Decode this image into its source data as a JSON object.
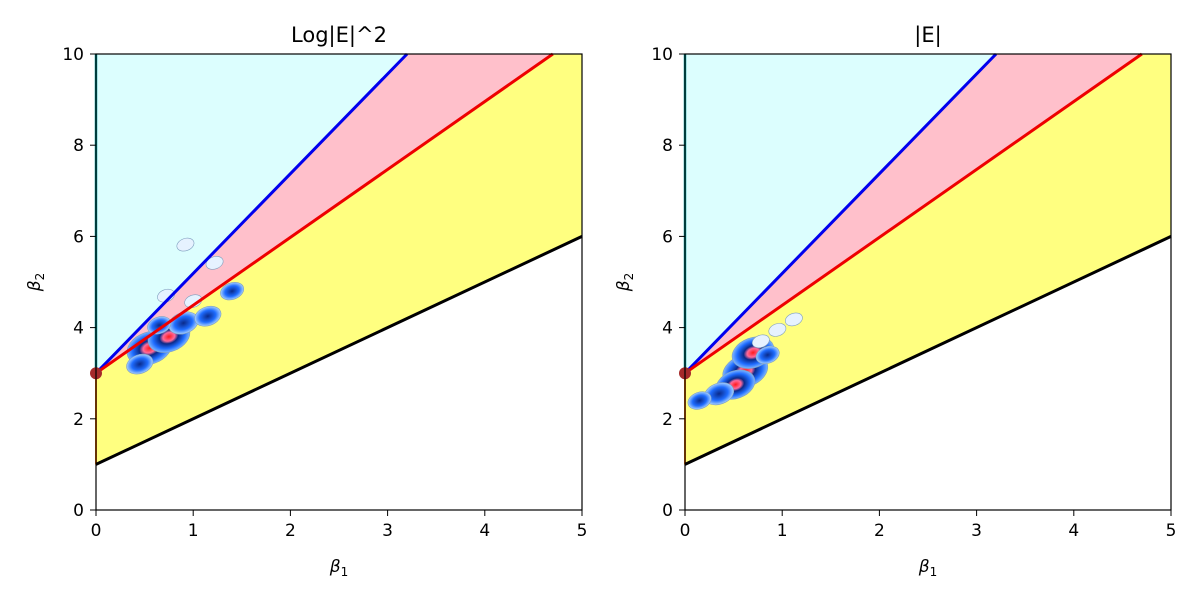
{
  "chart_data": [
    {
      "type": "area",
      "title": "Log|E|^2",
      "xlabel": "β1",
      "ylabel": "β2",
      "xlim": [
        0,
        5
      ],
      "ylim": [
        0,
        10
      ],
      "xticks": [
        "0",
        "1",
        "2",
        "3",
        "4",
        "5"
      ],
      "yticks": [
        "0",
        "2",
        "4",
        "6",
        "8",
        "10"
      ],
      "grid": false,
      "colors": {
        "region_top": "#dcfefe",
        "region_upper_mid": "#ffc0cb",
        "region_lower_mid": "#ffff80",
        "line_blue": "#0000ee",
        "line_red": "#ee0000",
        "line_black": "#000000",
        "marker": "#a52a2a"
      },
      "series": [
        {
          "x": [
            0,
            3.2
          ],
          "y": [
            3,
            10
          ],
          "color": "#0000ee"
        },
        {
          "x": [
            0,
            4.7
          ],
          "y": [
            3,
            10
          ],
          "color": "#ee0000"
        },
        {
          "x": [
            0,
            5
          ],
          "y": [
            1,
            6
          ],
          "color": "#000000"
        }
      ],
      "marker_point": {
        "x": 0,
        "y": 3
      },
      "heatmap_blobs": [
        {
          "x": 0.55,
          "y": 3.55,
          "intensity": 1.0
        },
        {
          "x": 0.75,
          "y": 3.8,
          "intensity": 0.9
        },
        {
          "x": 0.45,
          "y": 3.2,
          "intensity": 0.4
        },
        {
          "x": 0.9,
          "y": 4.1,
          "intensity": 0.5
        },
        {
          "x": 1.15,
          "y": 4.25,
          "intensity": 0.4
        },
        {
          "x": 1.4,
          "y": 4.8,
          "intensity": 0.3
        },
        {
          "x": 0.65,
          "y": 4.05,
          "intensity": 0.3
        },
        {
          "x": 0.92,
          "y": 5.82,
          "intensity": 0.1
        },
        {
          "x": 1.22,
          "y": 5.42,
          "intensity": 0.1
        },
        {
          "x": 1.0,
          "y": 4.58,
          "intensity": 0.1
        },
        {
          "x": 0.72,
          "y": 4.7,
          "intensity": 0.1
        }
      ]
    },
    {
      "type": "area",
      "title": "|E|",
      "xlabel": "β1",
      "ylabel": "β2",
      "xlim": [
        0,
        5
      ],
      "ylim": [
        0,
        10
      ],
      "xticks": [
        "0",
        "1",
        "2",
        "3",
        "4",
        "5"
      ],
      "yticks": [
        "0",
        "2",
        "4",
        "6",
        "8",
        "10"
      ],
      "grid": false,
      "colors": {
        "region_top": "#dcfefe",
        "region_upper_mid": "#ffc0cb",
        "region_lower_mid": "#ffff80",
        "line_blue": "#0000ee",
        "line_red": "#ee0000",
        "line_black": "#000000",
        "marker": "#a52a2a"
      },
      "series": [
        {
          "x": [
            0,
            3.2
          ],
          "y": [
            3,
            10
          ],
          "color": "#0000ee"
        },
        {
          "x": [
            0,
            4.7
          ],
          "y": [
            3,
            10
          ],
          "color": "#ee0000"
        },
        {
          "x": [
            0,
            5
          ],
          "y": [
            1,
            6
          ],
          "color": "#000000"
        }
      ],
      "marker_point": {
        "x": 0,
        "y": 3
      },
      "heatmap_blobs": [
        {
          "x": 0.62,
          "y": 3.05,
          "intensity": 1.0
        },
        {
          "x": 0.7,
          "y": 3.45,
          "intensity": 0.9
        },
        {
          "x": 0.52,
          "y": 2.75,
          "intensity": 0.8
        },
        {
          "x": 0.35,
          "y": 2.55,
          "intensity": 0.5
        },
        {
          "x": 0.15,
          "y": 2.4,
          "intensity": 0.3
        },
        {
          "x": 0.85,
          "y": 3.4,
          "intensity": 0.3
        },
        {
          "x": 0.95,
          "y": 3.95,
          "intensity": 0.1
        },
        {
          "x": 1.12,
          "y": 4.18,
          "intensity": 0.1
        },
        {
          "x": 0.78,
          "y": 3.7,
          "intensity": 0.1
        }
      ]
    }
  ]
}
